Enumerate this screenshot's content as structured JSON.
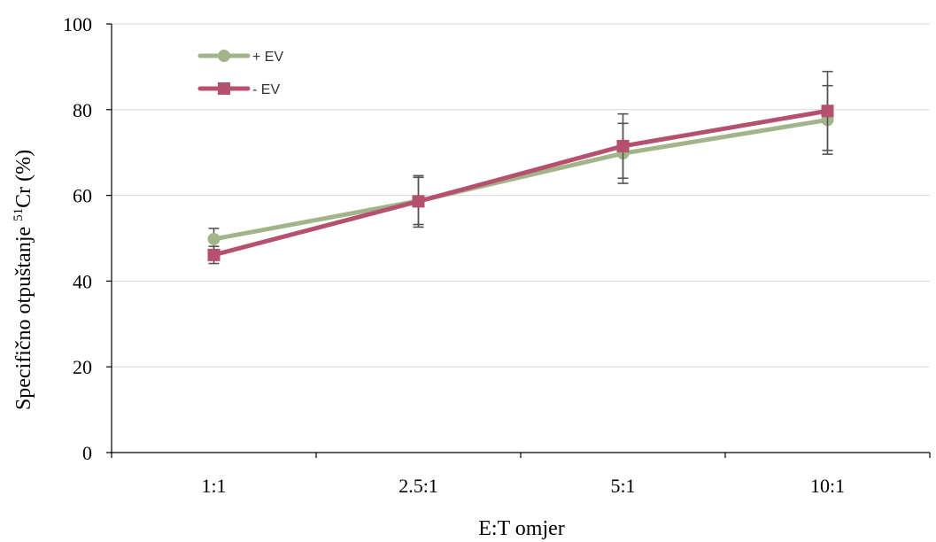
{
  "chart_data": {
    "type": "line",
    "title": "",
    "xlabel": "E:T omjer",
    "ylabel": {
      "prefix": "Specifično otpuštanje ",
      "superscript": "51",
      "suffix": "Cr (%)"
    },
    "categories": [
      "1:1",
      "2.5:1",
      "5:1",
      "10:1"
    ],
    "ylim": [
      0,
      100
    ],
    "yticks": [
      "0",
      "20",
      "40",
      "60",
      "80",
      "100"
    ],
    "grid": "horizontal",
    "legend_position": "top-left",
    "series": [
      {
        "name": "+ EV",
        "values": [
          49.8,
          58.7,
          69.8,
          77.6
        ],
        "errors": [
          2.5,
          5.5,
          7.0,
          8.0
        ],
        "color": "#a2b58a",
        "marker": "circle"
      },
      {
        "name": "- EV",
        "values": [
          46.1,
          58.6,
          71.5,
          79.7
        ],
        "errors": [
          2.0,
          6.0,
          7.5,
          9.2
        ],
        "color": "#b5516f",
        "marker": "square"
      }
    ]
  }
}
